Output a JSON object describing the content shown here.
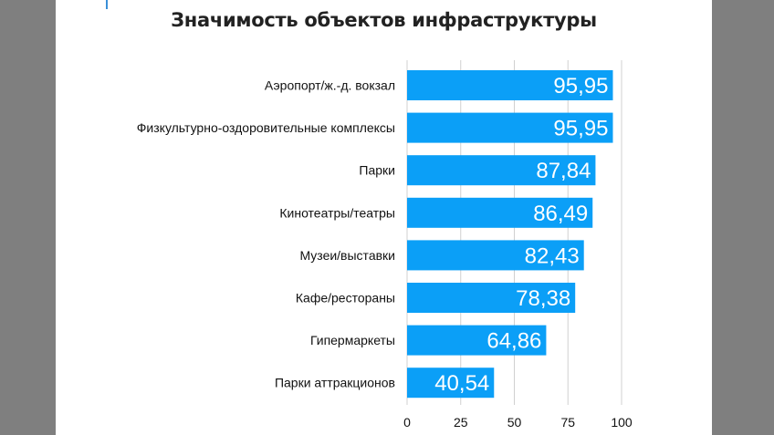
{
  "chart_data": {
    "type": "bar",
    "orientation": "horizontal",
    "title": "Значимость объектов инфраструктуры",
    "categories": [
      "Аэропорт/ж.-д. вокзал",
      "Физкультурно-оздоровительные комплексы",
      "Парки",
      "Кинотеатры/театры",
      "Музеи/выставки",
      "Кафе/рестораны",
      "Гипермаркеты",
      "Парки аттракционов"
    ],
    "values": [
      95.95,
      95.95,
      87.84,
      86.49,
      82.43,
      78.38,
      64.86,
      40.54
    ],
    "value_labels": [
      "95,95",
      "95,95",
      "87,84",
      "86,49",
      "82,43",
      "78,38",
      "64,86",
      "40,54"
    ],
    "xlim": [
      0,
      100
    ],
    "xticks": [
      "0",
      "25",
      "50",
      "75",
      "100"
    ],
    "grid": true,
    "bar_color": "#0b9ff7",
    "grid_color": "#d0d0d0"
  }
}
